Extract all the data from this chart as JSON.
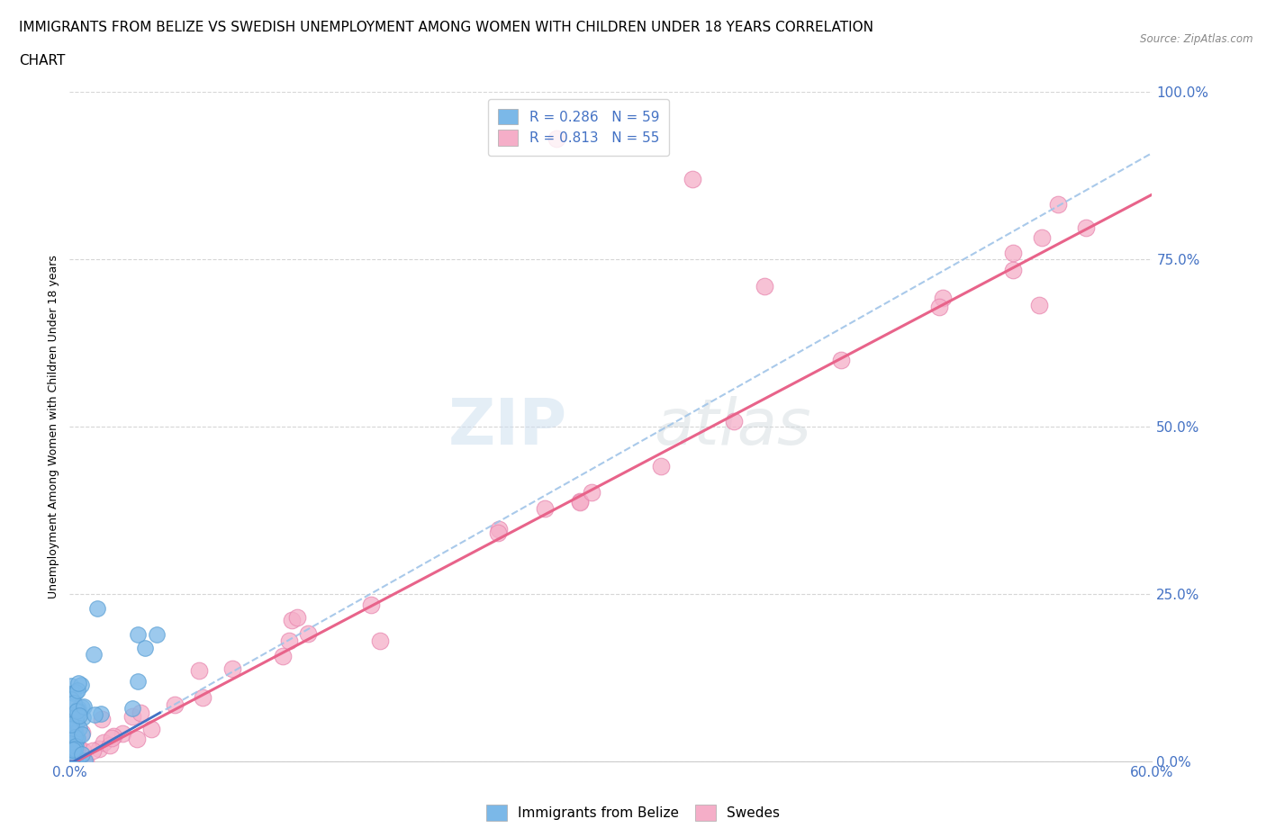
{
  "title_line1": "IMMIGRANTS FROM BELIZE VS SWEDISH UNEMPLOYMENT AMONG WOMEN WITH CHILDREN UNDER 18 YEARS CORRELATION",
  "title_line2": "CHART",
  "source": "Source: ZipAtlas.com",
  "ylabel": "Unemployment Among Women with Children Under 18 years",
  "xlim": [
    0.0,
    0.6
  ],
  "ylim": [
    0.0,
    1.0
  ],
  "xticks": [
    0.0,
    0.1,
    0.2,
    0.3,
    0.4,
    0.5,
    0.6
  ],
  "xticklabels": [
    "0.0%",
    "",
    "",
    "",
    "",
    "",
    "60.0%"
  ],
  "yticks": [
    0.0,
    0.25,
    0.5,
    0.75,
    1.0
  ],
  "yticklabels": [
    "0.0%",
    "25.0%",
    "50.0%",
    "75.0%",
    "100.0%"
  ],
  "belize_color": "#7bb8e8",
  "belize_edge_color": "#5a9fd4",
  "swedes_color": "#f5aec8",
  "swedes_edge_color": "#e888b0",
  "belize_R": 0.286,
  "belize_N": 59,
  "swedes_R": 0.813,
  "swedes_N": 55,
  "legend_label_belize": "Immigrants from Belize",
  "legend_label_swedes": "Swedes",
  "title_fontsize": 11,
  "axis_label_fontsize": 9,
  "tick_fontsize": 11,
  "legend_fontsize": 11,
  "watermark_zip": "ZIP",
  "watermark_atlas": "atlas",
  "background_color": "#ffffff",
  "dashed_line_color": "#a0c4e8",
  "solid_line_color": "#e8638a",
  "belize_solid_line_color": "#4472c4",
  "tick_color": "#4472c4",
  "grid_color": "#cccccc",
  "belize_trend_slope": 1.52,
  "belize_trend_intercept": -0.003,
  "swedes_trend_slope": 1.42,
  "swedes_trend_intercept": -0.005
}
